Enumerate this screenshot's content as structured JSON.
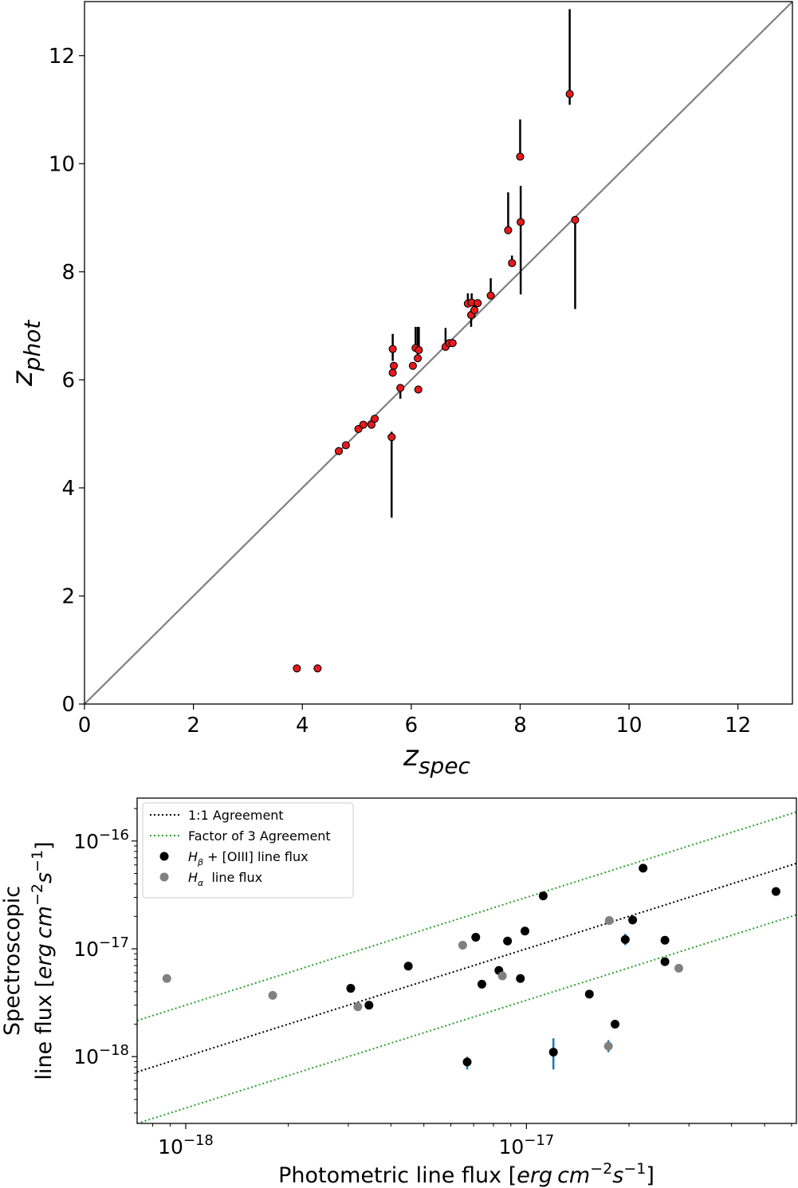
{
  "chart_data": [
    {
      "type": "scatter",
      "title": "",
      "xlabel": "z_spec",
      "ylabel": "z_phot",
      "xlabel_base": "z",
      "xlabel_sub": "spec",
      "ylabel_base": "z",
      "ylabel_sub": "phot",
      "xlim": [
        0,
        13
      ],
      "ylim": [
        0,
        13
      ],
      "xticks": [
        "0",
        "2",
        "4",
        "6",
        "8",
        "10",
        "12"
      ],
      "yticks": [
        "0",
        "2",
        "4",
        "6",
        "8",
        "10",
        "12"
      ],
      "reference_line": "1:1",
      "marker_color": "#e8191c",
      "errorbar_color": "#000000",
      "line_color": "#808080",
      "points": [
        {
          "x": 3.9,
          "y": 0.66,
          "lo": 0.66,
          "hi": 0.66
        },
        {
          "x": 4.28,
          "y": 0.66,
          "lo": 0.66,
          "hi": 0.66
        },
        {
          "x": 4.67,
          "y": 4.68,
          "lo": 4.68,
          "hi": 4.68
        },
        {
          "x": 4.8,
          "y": 4.79,
          "lo": 4.79,
          "hi": 4.79
        },
        {
          "x": 5.03,
          "y": 5.09,
          "lo": 5.09,
          "hi": 5.09
        },
        {
          "x": 5.12,
          "y": 5.17,
          "lo": 5.17,
          "hi": 5.17
        },
        {
          "x": 5.27,
          "y": 5.17,
          "lo": 5.17,
          "hi": 5.17
        },
        {
          "x": 5.33,
          "y": 5.28,
          "lo": 5.28,
          "hi": 5.28
        },
        {
          "x": 5.64,
          "y": 4.94,
          "lo": 3.45,
          "hi": 5.04
        },
        {
          "x": 5.66,
          "y": 6.57,
          "lo": 6.35,
          "hi": 6.85
        },
        {
          "x": 5.66,
          "y": 6.13,
          "lo": 6.13,
          "hi": 6.2
        },
        {
          "x": 5.68,
          "y": 6.26,
          "lo": 6.26,
          "hi": 6.26
        },
        {
          "x": 5.8,
          "y": 5.85,
          "lo": 5.65,
          "hi": 5.9
        },
        {
          "x": 6.03,
          "y": 6.26,
          "lo": 6.26,
          "hi": 6.3
        },
        {
          "x": 6.08,
          "y": 6.59,
          "lo": 6.59,
          "hi": 6.98
        },
        {
          "x": 6.12,
          "y": 6.4,
          "lo": 6.4,
          "hi": 6.98
        },
        {
          "x": 6.14,
          "y": 6.55,
          "lo": 6.55,
          "hi": 6.98
        },
        {
          "x": 6.13,
          "y": 5.82,
          "lo": 5.82,
          "hi": 5.82
        },
        {
          "x": 6.63,
          "y": 6.61,
          "lo": 6.61,
          "hi": 6.96
        },
        {
          "x": 6.7,
          "y": 6.68,
          "lo": 6.68,
          "hi": 6.68
        },
        {
          "x": 6.76,
          "y": 6.68,
          "lo": 6.68,
          "hi": 6.68
        },
        {
          "x": 7.04,
          "y": 7.41,
          "lo": 7.41,
          "hi": 7.6
        },
        {
          "x": 7.11,
          "y": 7.43,
          "lo": 7.43,
          "hi": 7.6
        },
        {
          "x": 7.1,
          "y": 7.2,
          "lo": 6.98,
          "hi": 7.3
        },
        {
          "x": 7.16,
          "y": 7.29,
          "lo": 7.15,
          "hi": 7.4
        },
        {
          "x": 7.22,
          "y": 7.42,
          "lo": 7.42,
          "hi": 7.42
        },
        {
          "x": 7.46,
          "y": 7.56,
          "lo": 7.56,
          "hi": 7.88
        },
        {
          "x": 7.78,
          "y": 8.77,
          "lo": 8.77,
          "hi": 9.47
        },
        {
          "x": 7.85,
          "y": 8.16,
          "lo": 8.16,
          "hi": 8.3
        },
        {
          "x": 8.0,
          "y": 10.13,
          "lo": 10.13,
          "hi": 10.82
        },
        {
          "x": 8.01,
          "y": 8.92,
          "lo": 7.58,
          "hi": 9.59
        },
        {
          "x": 8.91,
          "y": 11.29,
          "lo": 11.09,
          "hi": 12.86
        },
        {
          "x": 9.01,
          "y": 8.96,
          "lo": 7.31,
          "hi": 8.96
        }
      ]
    },
    {
      "type": "scatter",
      "scale": "log-log",
      "title": "",
      "xlabel": "Photometric line flux [erg cm−2s−1]",
      "ylabel": "Spectroscopic line flux [erg cm−2s−1]",
      "xlabel_text": "Photometric line flux ",
      "ylabel_line1": "Spectroscopic",
      "ylabel_line2_text": "line flux ",
      "unit_erg": "erg",
      "unit_cm": "cm",
      "unit_s": "s",
      "unit_exp2": "−2",
      "unit_exp1": "−1",
      "xlim": [
        7.2e-19,
        6.2e-17
      ],
      "ylim": [
        2.4e-19,
        2.5e-16
      ],
      "xticks": [
        {
          "value": 1e-18,
          "base": "10",
          "exp": "−18"
        },
        {
          "value": 1e-17,
          "base": "10",
          "exp": "−17"
        }
      ],
      "yticks": [
        {
          "value": 1e-18,
          "base": "10",
          "exp": "−18"
        },
        {
          "value": 1e-17,
          "base": "10",
          "exp": "−17"
        },
        {
          "value": 1e-16,
          "base": "10",
          "exp": "−16"
        }
      ],
      "legend_position": "upper-left",
      "legend": [
        {
          "kind": "line",
          "color": "#000000",
          "label": "1:1 Agreement"
        },
        {
          "kind": "line",
          "color": "#2ca02c",
          "label": "Factor of 3 Agreement"
        },
        {
          "kind": "point",
          "color": "#000000",
          "label_italic": "H",
          "label_sub": "β",
          "label_rest": " + [OIII] line flux"
        },
        {
          "kind": "point",
          "color": "#808080",
          "label_italic": "H",
          "label_sub": "α",
          "label_rest": "  line flux"
        }
      ],
      "lines": [
        {
          "name": "1:1 Agreement",
          "factor": 1,
          "color": "#000000"
        },
        {
          "name": "Factor of 3 Agreement (upper)",
          "factor": 3,
          "color": "#2ca02c"
        },
        {
          "name": "Factor of 3 Agreement (lower)",
          "factor": 0.3333,
          "color": "#2ca02c"
        }
      ],
      "series": [
        {
          "name": "Hβ + [OIII] line flux",
          "color": "#000000",
          "points": [
            {
              "x": 3.05e-18,
              "y": 4.3e-18
            },
            {
              "x": 3.45e-18,
              "y": 3e-18
            },
            {
              "x": 4.5e-18,
              "y": 6.9e-18
            },
            {
              "x": 6.7e-18,
              "y": 8.9e-19,
              "lo": 7.6e-19,
              "hi": 1e-18
            },
            {
              "x": 7.1e-18,
              "y": 1.28e-17
            },
            {
              "x": 7.4e-18,
              "y": 4.7e-18
            },
            {
              "x": 8.3e-18,
              "y": 6.3e-18
            },
            {
              "x": 8.8e-18,
              "y": 1.18e-17
            },
            {
              "x": 9.6e-18,
              "y": 5.3e-18
            },
            {
              "x": 9.9e-18,
              "y": 1.46e-17
            },
            {
              "x": 1.12e-17,
              "y": 3.1e-17
            },
            {
              "x": 1.2e-17,
              "y": 1.1e-18,
              "lo": 7.6e-19,
              "hi": 1.48e-18
            },
            {
              "x": 1.53e-17,
              "y": 3.8e-18
            },
            {
              "x": 1.82e-17,
              "y": 2e-18
            },
            {
              "x": 1.95e-17,
              "y": 1.22e-17,
              "lo": 1.08e-17,
              "hi": 1.38e-17
            },
            {
              "x": 2.05e-17,
              "y": 1.85e-17
            },
            {
              "x": 2.2e-17,
              "y": 5.6e-17
            },
            {
              "x": 2.55e-17,
              "y": 1.2e-17
            },
            {
              "x": 2.55e-17,
              "y": 7.6e-18
            },
            {
              "x": 5.4e-17,
              "y": 3.4e-17
            }
          ]
        },
        {
          "name": "Hα line flux",
          "color": "#808080",
          "points": [
            {
              "x": 8.8e-19,
              "y": 5.3e-18
            },
            {
              "x": 1.8e-18,
              "y": 3.7e-18
            },
            {
              "x": 3.2e-18,
              "y": 2.9e-18
            },
            {
              "x": 6.5e-18,
              "y": 1.08e-17
            },
            {
              "x": 8.5e-18,
              "y": 5.6e-18
            },
            {
              "x": 1.74e-17,
              "y": 1.25e-18,
              "lo": 1.1e-18,
              "hi": 1.42e-18
            },
            {
              "x": 1.75e-17,
              "y": 1.83e-17
            },
            {
              "x": 2.8e-17,
              "y": 6.6e-18
            }
          ]
        }
      ],
      "errorbar_color": "#1f77b4"
    }
  ]
}
